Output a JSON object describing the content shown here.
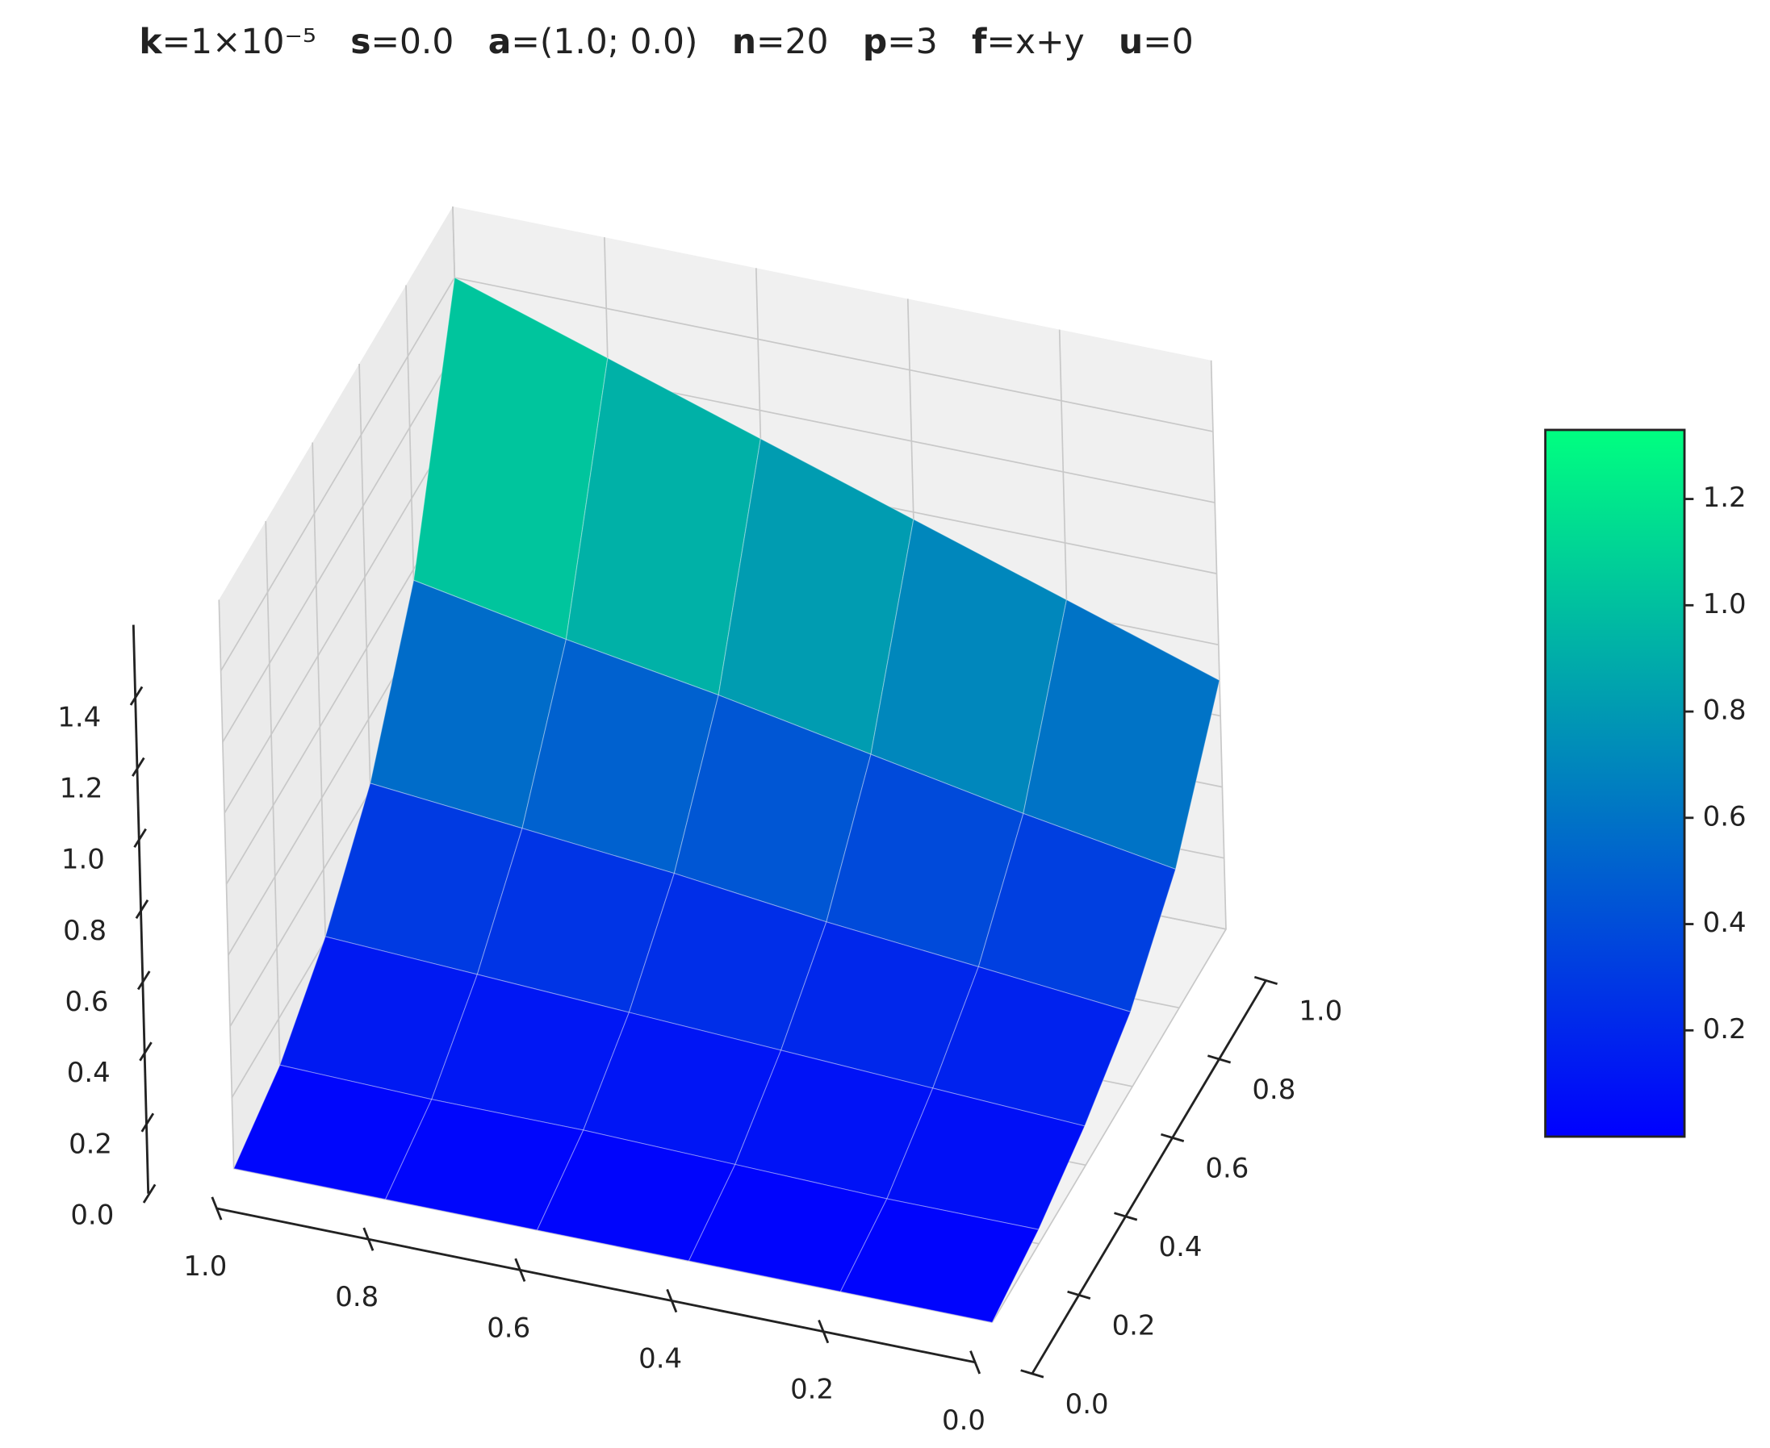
{
  "chart_data": {
    "type": "surface",
    "title_parts": [
      {
        "bold": "k",
        "text": "=1×10⁻⁵"
      },
      {
        "bold": "s",
        "text": "=0.0"
      },
      {
        "bold": "a",
        "text": "=(1.0; 0.0)"
      },
      {
        "bold": "n",
        "text": "=20"
      },
      {
        "bold": "p",
        "text": "=3"
      },
      {
        "bold": "f",
        "text": "=x+y"
      },
      {
        "bold": "u",
        "text": "=0"
      }
    ],
    "x": [
      0,
      0.2,
      0.4,
      0.6,
      0.8,
      1.0
    ],
    "y": [
      0,
      0.2,
      0.4,
      0.6,
      0.8,
      1.0
    ],
    "z": [
      [
        0,
        0,
        0,
        0,
        0,
        0
      ],
      [
        0.04,
        0.04,
        0.05,
        0.06,
        0.06,
        0.07
      ],
      [
        0.11,
        0.13,
        0.15,
        0.17,
        0.19,
        0.21
      ],
      [
        0.21,
        0.25,
        0.29,
        0.34,
        0.38,
        0.42
      ],
      [
        0.39,
        0.46,
        0.54,
        0.62,
        0.69,
        0.77
      ],
      [
        0.7,
        0.84,
        0.98,
        1.12,
        1.26,
        1.4
      ]
    ],
    "xlim": [
      0,
      1
    ],
    "ylim": [
      0,
      1
    ],
    "zlim": [
      0,
      1.6
    ],
    "xticks": [
      {
        "value": 0,
        "label": "0.0"
      },
      0.2,
      0.4,
      0.6,
      0.8,
      {
        "value": 1,
        "label": "1.0"
      }
    ],
    "yticks": [
      {
        "value": 0,
        "label": "0.0"
      },
      0.2,
      0.4,
      0.6,
      0.8,
      {
        "value": 1,
        "label": "1.0"
      }
    ],
    "zticks": [
      {
        "value": 0,
        "label": "0.0"
      },
      0.2,
      0.4,
      0.6,
      0.8,
      {
        "value": 1,
        "label": "1.0"
      },
      1.2,
      1.4
    ],
    "colormap": [
      "#0000ff",
      "#00ff80"
    ],
    "clim": [
      0,
      1.33
    ],
    "cbar_ticks": [
      0.2,
      0.4,
      0.6,
      0.8,
      {
        "value": 1,
        "label": "1.0"
      },
      1.2
    ],
    "grid": true
  }
}
